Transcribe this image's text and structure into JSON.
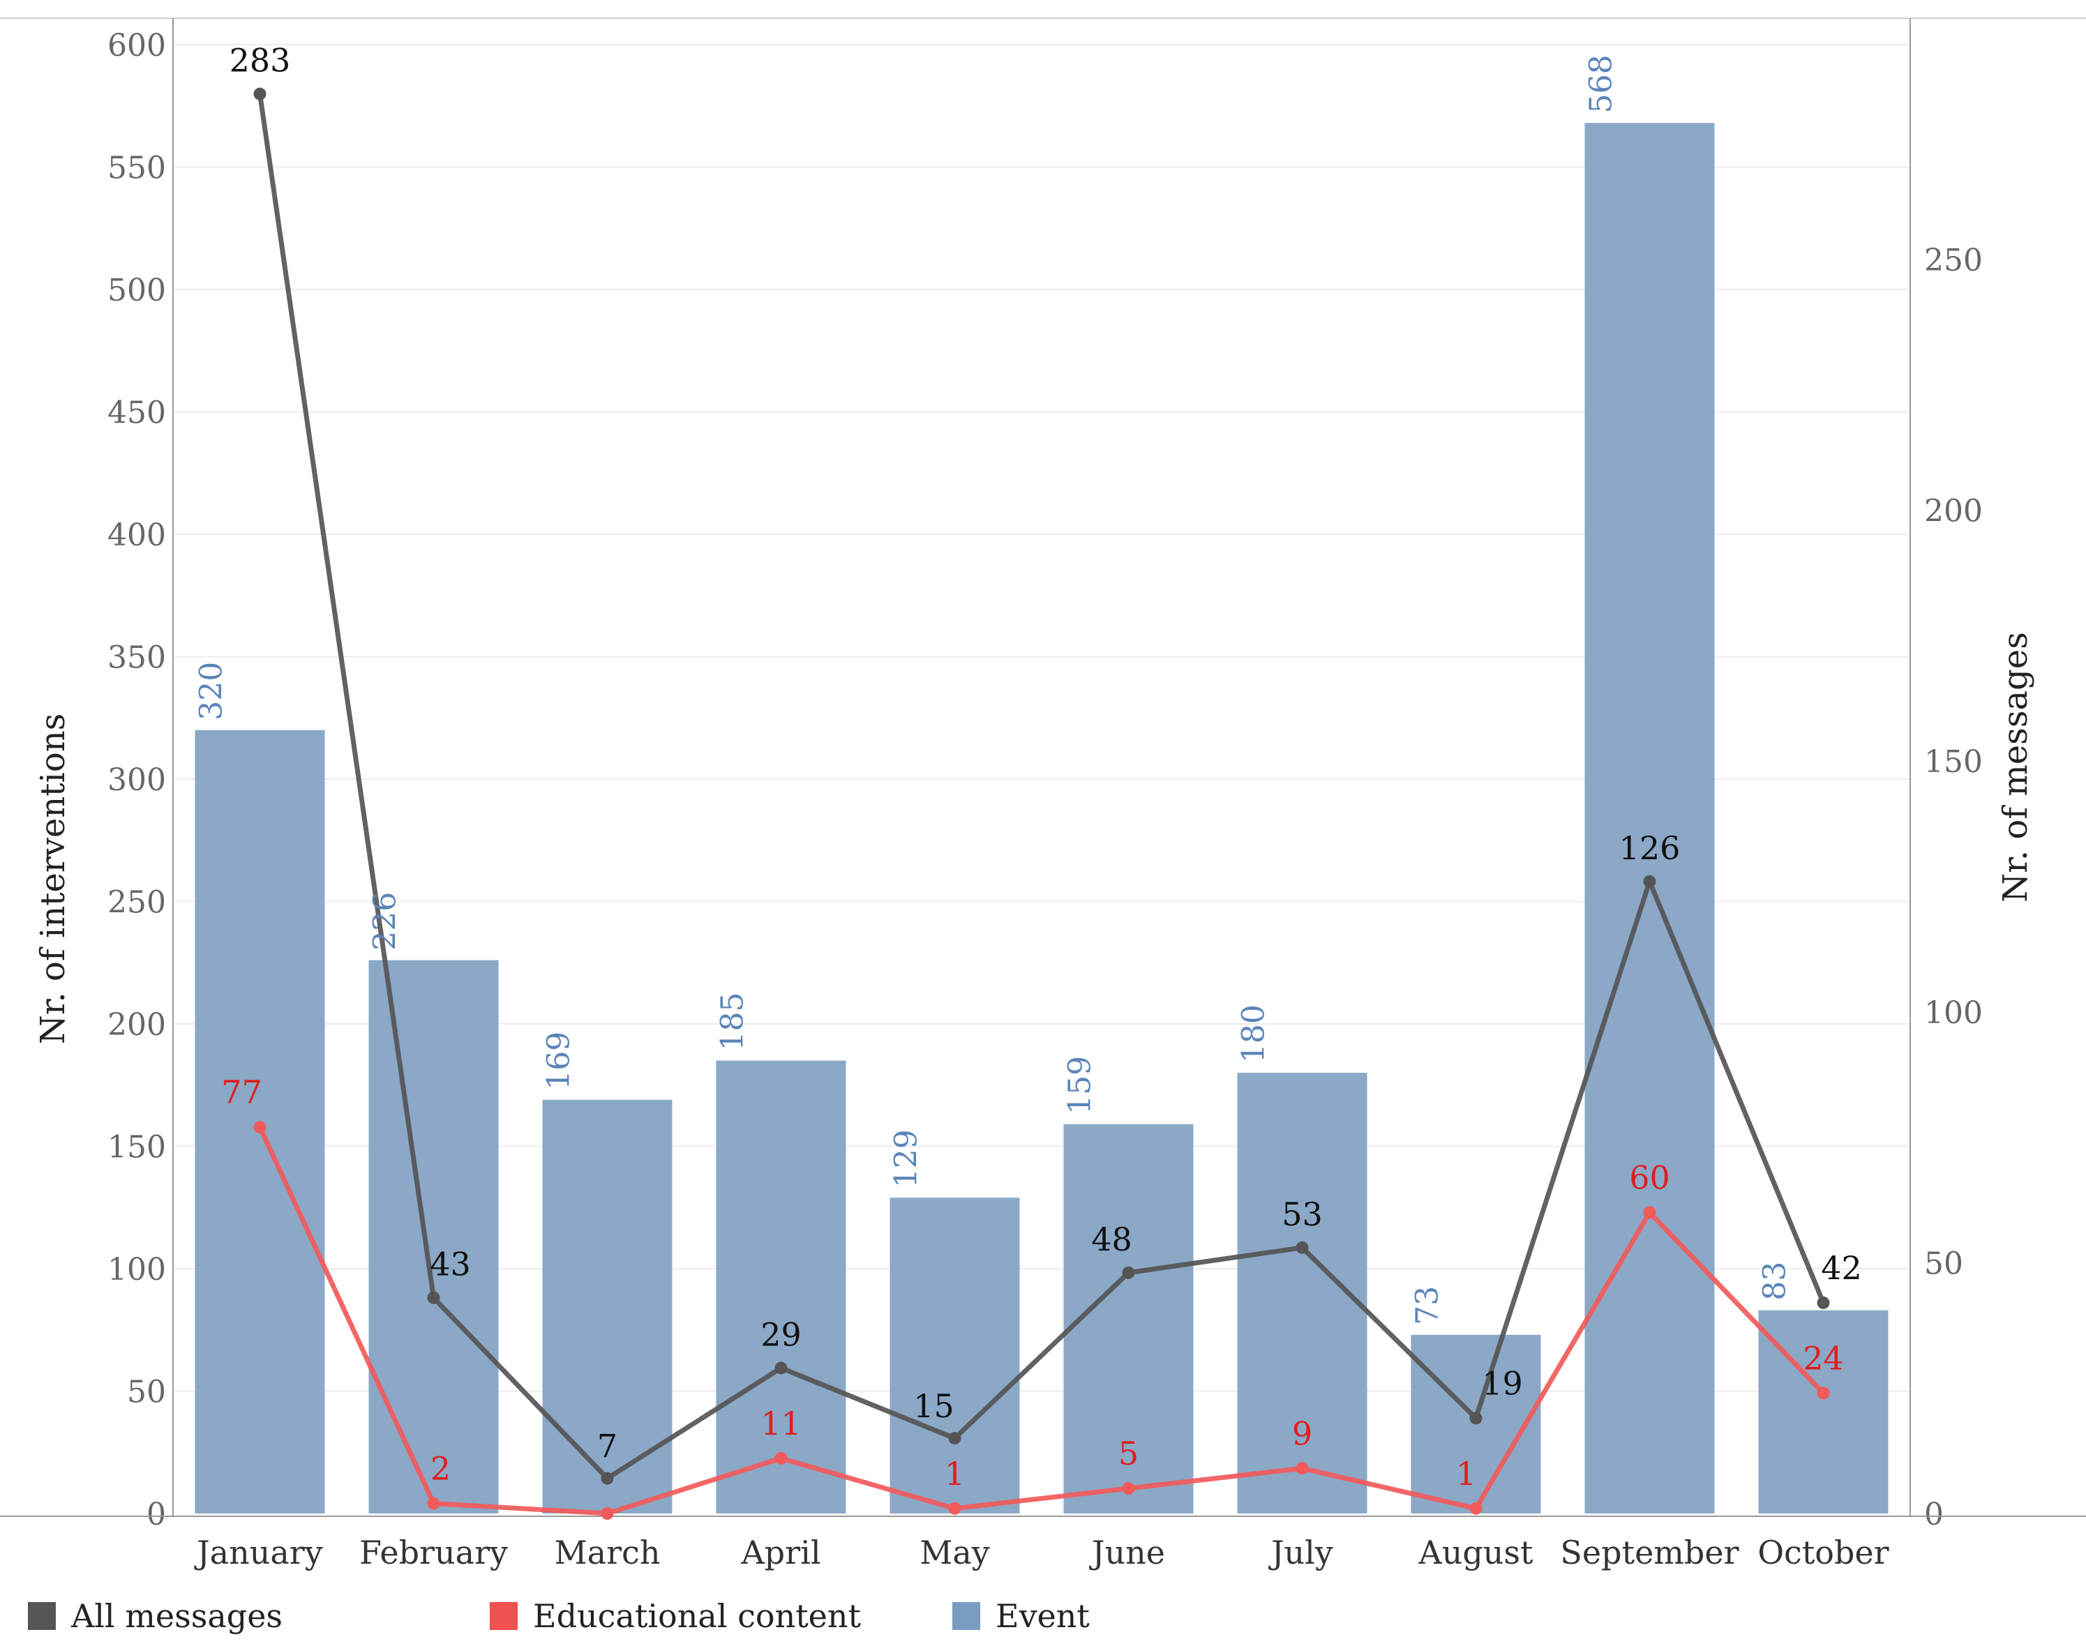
{
  "chart_data": {
    "type": "bar+line",
    "categories": [
      "January",
      "February",
      "March",
      "April",
      "May",
      "June",
      "July",
      "August",
      "September",
      "October"
    ],
    "bar_series": {
      "name": "Event",
      "axis": "left",
      "values": [
        320,
        226,
        169,
        185,
        129,
        159,
        180,
        73,
        568,
        83
      ],
      "labels": [
        "320",
        "226",
        "169",
        "185",
        "129",
        "159",
        "180",
        "73",
        "568",
        "83"
      ]
    },
    "line_series": [
      {
        "name": "All messages",
        "axis": "right",
        "values": [
          283,
          43,
          7,
          29,
          15,
          48,
          53,
          19,
          126,
          42
        ],
        "labels": [
          "283",
          "43",
          "7",
          "29",
          "15",
          "48",
          "53",
          "19",
          "126",
          "42"
        ]
      },
      {
        "name": "Educational content",
        "axis": "right",
        "values": [
          77,
          2,
          0,
          11,
          1,
          5,
          9,
          1,
          60,
          24
        ],
        "labels": [
          "77",
          "2",
          "",
          "11",
          "1",
          "5",
          "9",
          "1",
          "60",
          "24"
        ]
      }
    ],
    "left_axis": {
      "label": "Nr. of interventions",
      "ylim": [
        0,
        600
      ],
      "ticks": [
        0,
        50,
        100,
        150,
        200,
        250,
        300,
        350,
        400,
        450,
        500,
        550,
        600
      ],
      "tick_labels": [
        "0",
        "50",
        "100",
        "150",
        "200",
        "250",
        "300",
        "350",
        "400",
        "450",
        "500",
        "550",
        "600"
      ]
    },
    "right_axis": {
      "label": "Nr. of messages",
      "ylim": [
        0,
        300
      ],
      "ticks": [
        0,
        50,
        100,
        150,
        200,
        250
      ],
      "tick_labels": [
        "0",
        "50",
        "100",
        "150",
        "200",
        "250"
      ]
    },
    "grid": true,
    "legend_position": "bottom-left"
  },
  "legend": {
    "items": [
      {
        "label": "All messages",
        "color": "#555555"
      },
      {
        "label": "Educational content",
        "color": "#f05050"
      },
      {
        "label": "Event",
        "color": "#7a9cc0"
      }
    ]
  },
  "colors": {
    "bar": "#8ba8c7",
    "bar_label": "#5a84b8",
    "all_line": "#555555",
    "all_label": "#111111",
    "edu_line": "#f25a5a",
    "edu_label": "#e01e1e",
    "axis": "#999999",
    "grid": "#ececec",
    "tick_text": "#666666"
  }
}
